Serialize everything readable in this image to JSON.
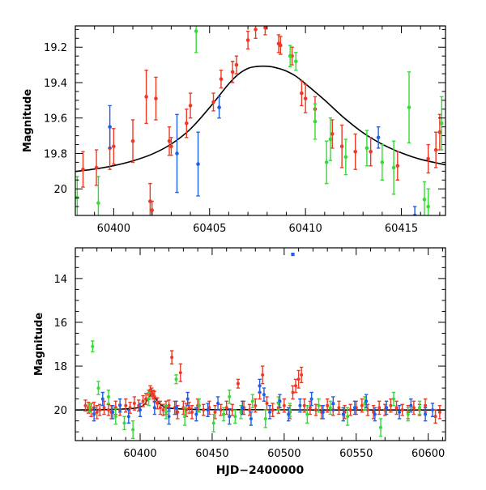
{
  "chart_data": [
    {
      "type": "scatter",
      "title": "",
      "xlabel": "",
      "ylabel": "Magnitude",
      "xlim": [
        60398.0,
        60417.3
      ],
      "ylim": [
        20.15,
        19.08
      ],
      "y_inverted": true,
      "grid": false,
      "legend": "none",
      "x_ticks": [
        "60400",
        "60405",
        "60410",
        "60415"
      ],
      "y_ticks": [
        "19.2",
        "19.4",
        "19.6",
        "19.8",
        "20"
      ],
      "series": [
        {
          "color": "#ee3a24",
          "marker": "filled-circle",
          "x": [
            60398.4,
            60399.1,
            60399.8,
            60400.0,
            60401.0,
            60401.7,
            60401.9,
            60402.0,
            60402.2,
            60402.9,
            60403.0,
            60403.8,
            60404.0,
            60405.2,
            60405.6,
            60406.2,
            60406.4,
            60407.0,
            60407.4,
            60407.9,
            60408.6,
            60408.7,
            60409.3,
            60409.8,
            60410.0,
            60410.5,
            60411.4,
            60411.9,
            60412.6,
            60413.4,
            60414.8,
            60416.4,
            60416.8,
            60417.0
          ],
          "y": [
            19.89,
            19.88,
            19.77,
            19.76,
            19.73,
            19.48,
            20.07,
            20.12,
            19.49,
            19.73,
            19.76,
            19.63,
            19.53,
            19.51,
            19.38,
            19.34,
            19.3,
            19.16,
            19.1,
            19.09,
            19.18,
            19.19,
            19.25,
            19.46,
            19.49,
            19.55,
            19.69,
            19.76,
            19.79,
            19.79,
            19.87,
            19.83,
            19.78,
            19.68
          ],
          "err": [
            0.1,
            0.1,
            0.12,
            0.1,
            0.12,
            0.15,
            0.1,
            0.05,
            0.12,
            0.08,
            0.05,
            0.08,
            0.07,
            0.05,
            0.05,
            0.06,
            0.05,
            0.05,
            0.05,
            0.04,
            0.05,
            0.05,
            0.05,
            0.07,
            0.08,
            0.07,
            0.08,
            0.12,
            0.1,
            0.08,
            0.08,
            0.08,
            0.1,
            0.1
          ]
        },
        {
          "color": "#33dd33",
          "marker": "filled-circle",
          "x": [
            60398.1,
            60399.2,
            60404.3,
            60409.2,
            60409.5,
            60410.5,
            60411.1,
            60411.3,
            60412.1,
            60413.2,
            60414.0,
            60414.6,
            60415.4,
            60416.2,
            60416.4,
            60417.1
          ],
          "y": [
            20.05,
            20.08,
            19.11,
            19.25,
            19.28,
            19.62,
            19.85,
            19.72,
            19.82,
            19.77,
            19.85,
            19.88,
            19.54,
            20.06,
            20.1,
            19.63
          ],
          "err": [
            0.12,
            0.15,
            0.12,
            0.06,
            0.05,
            0.1,
            0.12,
            0.12,
            0.1,
            0.1,
            0.1,
            0.15,
            0.2,
            0.1,
            0.1,
            0.15
          ]
        },
        {
          "color": "#1f5ee6",
          "marker": "filled-circle",
          "x": [
            60399.8,
            60403.3,
            60404.4,
            60405.5,
            60413.8,
            60415.7
          ],
          "y": [
            19.65,
            19.8,
            19.86,
            19.54,
            19.71,
            20.15
          ],
          "err": [
            0.12,
            0.22,
            0.18,
            0.06,
            0.06,
            0.05
          ]
        }
      ],
      "model_curve": {
        "color": "#000000",
        "x": [
          60398.0,
          60399.0,
          60400.0,
          60401.0,
          60402.0,
          60403.0,
          60404.0,
          60405.0,
          60406.0,
          60406.5,
          60407.0,
          60407.4,
          60407.8,
          60408.2,
          60408.6,
          60409.0,
          60409.5,
          60410.0,
          60411.0,
          60412.0,
          60413.0,
          60414.0,
          60415.0,
          60416.0,
          60417.3
        ],
        "y": [
          19.902,
          19.888,
          19.869,
          19.842,
          19.804,
          19.747,
          19.662,
          19.541,
          19.407,
          19.353,
          19.32,
          19.31,
          19.307,
          19.31,
          19.32,
          19.335,
          19.364,
          19.407,
          19.499,
          19.598,
          19.683,
          19.748,
          19.797,
          19.833,
          19.864
        ]
      }
    },
    {
      "type": "scatter",
      "title": "",
      "xlabel": "HJD−2400000",
      "ylabel": "Magnitude",
      "xlim": [
        60355,
        60612
      ],
      "ylim": [
        21.4,
        12.6
      ],
      "y_inverted": true,
      "grid": false,
      "legend": "none",
      "x_ticks": [
        "60400",
        "60450",
        "60500",
        "60550",
        "60600"
      ],
      "y_ticks": [
        "14",
        "16",
        "18",
        "20"
      ],
      "series": [
        {
          "color": "#ee3a24",
          "marker": "filled-circle",
          "x": [
            60362,
            60364,
            60366,
            60368,
            60370,
            60372,
            60375,
            60378,
            60380,
            60383,
            60386,
            60390,
            60393,
            60396,
            60399,
            60402,
            60404,
            60406,
            60407,
            60408,
            60409,
            60410,
            60412,
            60414,
            60416,
            60418,
            60420,
            60422,
            60424,
            60426,
            60428,
            60430,
            60432,
            60434,
            60436,
            60440,
            60444,
            60448,
            60452,
            60456,
            60460,
            60464,
            60468,
            60472,
            60476,
            60480,
            60483,
            60485,
            60488,
            60492,
            60496,
            60500,
            60504,
            60506,
            60508,
            60510,
            60512,
            60514,
            60518,
            60522,
            60526,
            60530,
            60534,
            60538,
            60542,
            60546,
            60550,
            60554,
            60558,
            60562,
            60566,
            60570,
            60574,
            60578,
            60582,
            60586,
            60590,
            60594,
            60598,
            60605,
            60608
          ],
          "y": [
            19.8,
            19.9,
            20.0,
            19.9,
            20.1,
            20.0,
            19.9,
            20.0,
            20.1,
            19.9,
            20.0,
            19.8,
            19.9,
            19.7,
            19.8,
            19.6,
            19.5,
            19.3,
            19.1,
            19.2,
            19.3,
            19.4,
            19.7,
            19.9,
            20.0,
            19.9,
            19.8,
            17.6,
            19.9,
            20.1,
            18.3,
            19.9,
            20.0,
            19.9,
            20.1,
            19.8,
            20.0,
            19.9,
            20.1,
            20.0,
            19.9,
            20.0,
            18.8,
            19.9,
            20.0,
            19.8,
            19.2,
            18.4,
            19.7,
            20.0,
            19.9,
            19.8,
            20.1,
            19.2,
            18.9,
            18.6,
            18.4,
            19.8,
            19.9,
            20.0,
            20.1,
            19.8,
            20.0,
            19.9,
            20.1,
            20.0,
            19.9,
            19.8,
            20.0,
            20.1,
            19.9,
            20.0,
            19.8,
            19.9,
            20.0,
            20.1,
            19.9,
            20.0,
            19.8,
            20.3,
            20.1
          ],
          "err": [
            0.25,
            0.25,
            0.3,
            0.25,
            0.3,
            0.25,
            0.3,
            0.25,
            0.3,
            0.3,
            0.25,
            0.3,
            0.25,
            0.3,
            0.25,
            0.25,
            0.25,
            0.2,
            0.2,
            0.2,
            0.2,
            0.25,
            0.25,
            0.3,
            0.25,
            0.3,
            0.25,
            0.3,
            0.3,
            0.3,
            0.4,
            0.3,
            0.3,
            0.25,
            0.3,
            0.3,
            0.25,
            0.3,
            0.3,
            0.25,
            0.3,
            0.25,
            0.2,
            0.3,
            0.25,
            0.3,
            0.3,
            0.4,
            0.3,
            0.3,
            0.25,
            0.3,
            0.3,
            0.3,
            0.3,
            0.4,
            0.35,
            0.3,
            0.3,
            0.25,
            0.3,
            0.3,
            0.25,
            0.3,
            0.3,
            0.25,
            0.3,
            0.3,
            0.25,
            0.3,
            0.3,
            0.25,
            0.3,
            0.3,
            0.25,
            0.3,
            0.3,
            0.25,
            0.3,
            0.3,
            0.3
          ]
        },
        {
          "color": "#33dd33",
          "marker": "filled-circle",
          "x": [
            60365,
            60367,
            60371,
            60378,
            60383,
            60389,
            60395,
            60406,
            60418,
            60425,
            60431,
            60441,
            60451,
            60458,
            60462,
            60466,
            60470,
            60478,
            60487,
            60496,
            60504,
            60516,
            60524,
            60532,
            60544,
            60556,
            60567,
            60576,
            60586,
            60594
          ],
          "y": [
            19.9,
            17.1,
            19.0,
            19.4,
            20.3,
            20.6,
            20.9,
            19.5,
            20.1,
            18.6,
            20.3,
            19.8,
            20.6,
            20.2,
            19.4,
            20.3,
            20.1,
            19.6,
            20.4,
            19.7,
            20.0,
            20.2,
            19.8,
            19.9,
            20.3,
            19.7,
            20.8,
            19.5,
            20.2,
            19.9
          ],
          "err": [
            0.2,
            0.25,
            0.3,
            0.3,
            0.35,
            0.3,
            0.4,
            0.3,
            0.3,
            0.2,
            0.4,
            0.3,
            0.4,
            0.3,
            0.3,
            0.3,
            0.3,
            0.3,
            0.4,
            0.3,
            0.3,
            0.4,
            0.3,
            0.3,
            0.4,
            0.3,
            0.4,
            0.3,
            0.3,
            0.3
          ]
        },
        {
          "color": "#1f5ee6",
          "marker": "filled-circle",
          "x": [
            60368,
            60374,
            60381,
            60386,
            60392,
            60400,
            60410,
            60420,
            60425,
            60433,
            60439,
            60447,
            60454,
            60462,
            60471,
            60477,
            60483,
            60486,
            60490,
            60497,
            60503,
            60506,
            60511,
            60519,
            60527,
            60534,
            60541,
            60549,
            60557,
            60563,
            60571,
            60580,
            60588,
            60598,
            60603
          ],
          "y": [
            20.2,
            19.5,
            20.1,
            19.8,
            20.3,
            20.0,
            19.9,
            20.3,
            19.9,
            19.5,
            20.2,
            20.0,
            19.7,
            20.3,
            19.9,
            20.4,
            18.9,
            19.3,
            20.1,
            19.6,
            20.2,
            12.9,
            19.8,
            19.5,
            20.1,
            19.7,
            20.2,
            19.9,
            19.6,
            20.2,
            19.9,
            20.1,
            19.8,
            20.2,
            20.0
          ],
          "err": [
            0.3,
            0.3,
            0.3,
            0.3,
            0.3,
            0.3,
            0.3,
            0.35,
            0.3,
            0.3,
            0.3,
            0.3,
            0.3,
            0.35,
            0.3,
            0.3,
            0.3,
            0.3,
            0.3,
            0.3,
            0.3,
            0.05,
            0.3,
            0.3,
            0.3,
            0.3,
            0.3,
            0.3,
            0.3,
            0.3,
            0.3,
            0.3,
            0.3,
            0.3,
            0.3
          ]
        }
      ],
      "model_curve": {
        "color": "#000000",
        "x": [
          60355,
          60380,
          60395,
          60400,
          60403,
          60405,
          60406.5,
          60407.8,
          60409,
          60410.5,
          60413,
          60416,
          60420,
          60440,
          60480,
          60520,
          60560,
          60590,
          60612
        ],
        "y": [
          20.0,
          19.98,
          19.93,
          19.87,
          19.75,
          19.54,
          19.36,
          19.31,
          19.34,
          19.45,
          19.68,
          19.83,
          19.92,
          19.98,
          19.99,
          20.0,
          20.0,
          20.0,
          20.0
        ]
      }
    }
  ]
}
